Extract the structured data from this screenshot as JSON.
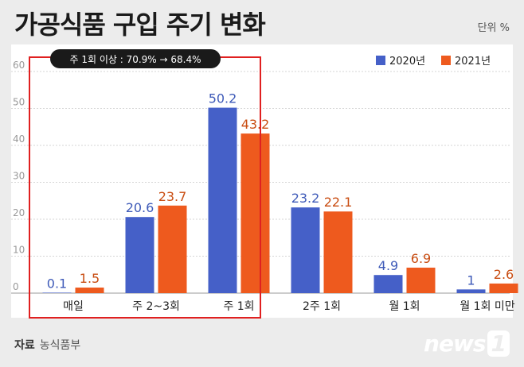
{
  "header": {
    "title": "가공식품 구입 주기 변화",
    "unit": "단위 %"
  },
  "annotation": {
    "label": "주 1회 이상 : 70.9% → 68.4%"
  },
  "source": {
    "label": "자료",
    "value": "농식품부"
  },
  "logo": {
    "text": "news",
    "num": "1"
  },
  "colors": {
    "series_2020": "#4560c8",
    "series_2021": "#ee5a1e",
    "label_2020": "#3e5ab8",
    "label_2021": "#c94d12",
    "highlight": "#e02020"
  },
  "chart_data": {
    "type": "bar",
    "title": "가공식품 구입 주기 변화",
    "categories": [
      "매일",
      "주 2~3회",
      "주 1회",
      "2주 1회",
      "월 1회",
      "월 1회 미만"
    ],
    "series": [
      {
        "name": "2020년",
        "values": [
          0.1,
          20.6,
          50.2,
          23.2,
          4.9,
          1.0
        ]
      },
      {
        "name": "2021년",
        "values": [
          1.5,
          23.7,
          43.2,
          22.1,
          6.9,
          2.6
        ]
      }
    ],
    "yticks": [
      0,
      10,
      20,
      30,
      40,
      50,
      60
    ],
    "ylim": [
      0,
      60
    ],
    "grid": true,
    "legend": "top-right"
  }
}
